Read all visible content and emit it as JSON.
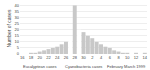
{
  "chart_data": {
    "type": "bar",
    "ylabel": "Number of cases",
    "categories": [
      "16",
      null,
      "18",
      null,
      "20",
      null,
      "22",
      null,
      "24",
      null,
      "26",
      null,
      "28",
      null,
      "30",
      null,
      "2",
      null,
      "4",
      null,
      "6",
      null,
      "8",
      null,
      "10",
      null,
      "12",
      null,
      "14"
    ],
    "values": [
      0,
      0,
      1,
      1,
      2,
      3,
      4,
      5,
      6,
      8,
      10,
      12,
      40,
      20,
      18,
      15,
      13,
      10,
      8,
      6,
      5,
      3,
      2,
      1,
      1,
      0,
      1,
      0,
      1
    ],
    "colors": [
      "#c8c8c8",
      "#c8c8c8",
      "#c8c8c8",
      "#c8c8c8",
      "#c8c8c8",
      "#c8c8c8",
      "#c8c8c8",
      "#c8c8c8",
      "#c8c8c8",
      "#c8c8c8",
      "#c8c8c8",
      "#ffffff",
      "#c8c8c8",
      "#ffffff",
      "#c8c8c8",
      "#c8c8c8",
      "#c8c8c8",
      "#c8c8c8",
      "#c8c8c8",
      "#c8c8c8",
      "#c8c8c8",
      "#c8c8c8",
      "#c8c8c8",
      "#c8c8c8",
      "#c8c8c8",
      "#c8c8c8",
      "#c8c8c8",
      "#c8c8c8",
      "#c8c8c8"
    ],
    "ylim": [
      0,
      42
    ],
    "yticks": [
      0,
      5,
      10,
      15,
      20,
      25,
      30,
      35,
      40
    ],
    "grid": true,
    "annotations": [
      "Eucalyptean cases",
      "Cyanobacteria cases",
      "February March 1999"
    ]
  }
}
